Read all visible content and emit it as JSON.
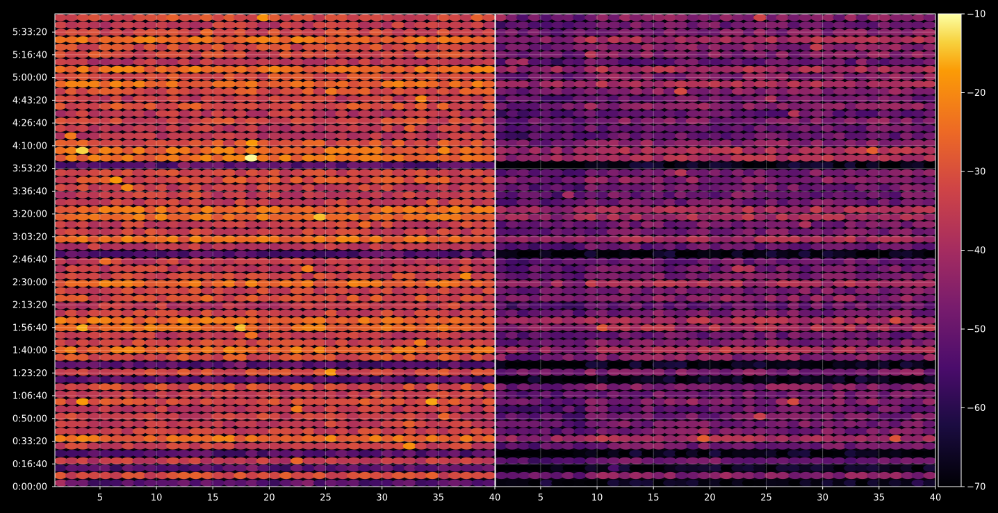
{
  "chart_data": {
    "type": "heatmap",
    "title": "",
    "xlabel": "",
    "ylabel": "",
    "colormap": "inferno",
    "background": "#000000",
    "grid": true,
    "panels": [
      {
        "name": "left",
        "x_range": [
          1,
          40
        ],
        "x_ticks": [
          "5",
          "10",
          "15",
          "20",
          "25",
          "30",
          "35",
          "40"
        ],
        "x_tick_values": [
          5,
          10,
          15,
          20,
          25,
          30,
          35,
          40
        ],
        "mean_db": -33
      },
      {
        "name": "right",
        "x_range": [
          1,
          40
        ],
        "x_ticks": [
          "5",
          "10",
          "15",
          "20",
          "25",
          "30",
          "35",
          "40"
        ],
        "x_tick_values": [
          5,
          10,
          15,
          20,
          25,
          30,
          35,
          40
        ],
        "mean_db": -47
      }
    ],
    "y_range_seconds": [
      0,
      20800
    ],
    "y_tick_values": [
      0,
      1000,
      2000,
      3000,
      4000,
      5000,
      6000,
      7000,
      8000,
      9000,
      10000,
      11000,
      12000,
      13000,
      14000,
      15000,
      16000,
      17000,
      18000,
      19000,
      20000
    ],
    "y_ticks": [
      "0:00:00",
      "0:16:40",
      "0:33:20",
      "0:50:00",
      "1:06:40",
      "1:23:20",
      "1:40:00",
      "1:56:40",
      "2:13:20",
      "2:30:00",
      "2:46:40",
      "3:03:20",
      "3:20:00",
      "3:36:40",
      "3:53:20",
      "4:10:00",
      "4:26:40",
      "4:43:20",
      "5:00:00",
      "5:16:40",
      "5:33:20"
    ],
    "rows": 64,
    "columns_per_panel": 39,
    "colorbar": {
      "range": [
        -70,
        -10
      ],
      "tick_values": [
        -70,
        -60,
        -50,
        -40,
        -30,
        -20,
        -10
      ],
      "ticks": [
        "−70",
        "−60",
        "−50",
        "−40",
        "−30",
        "−20",
        "−10"
      ]
    }
  }
}
